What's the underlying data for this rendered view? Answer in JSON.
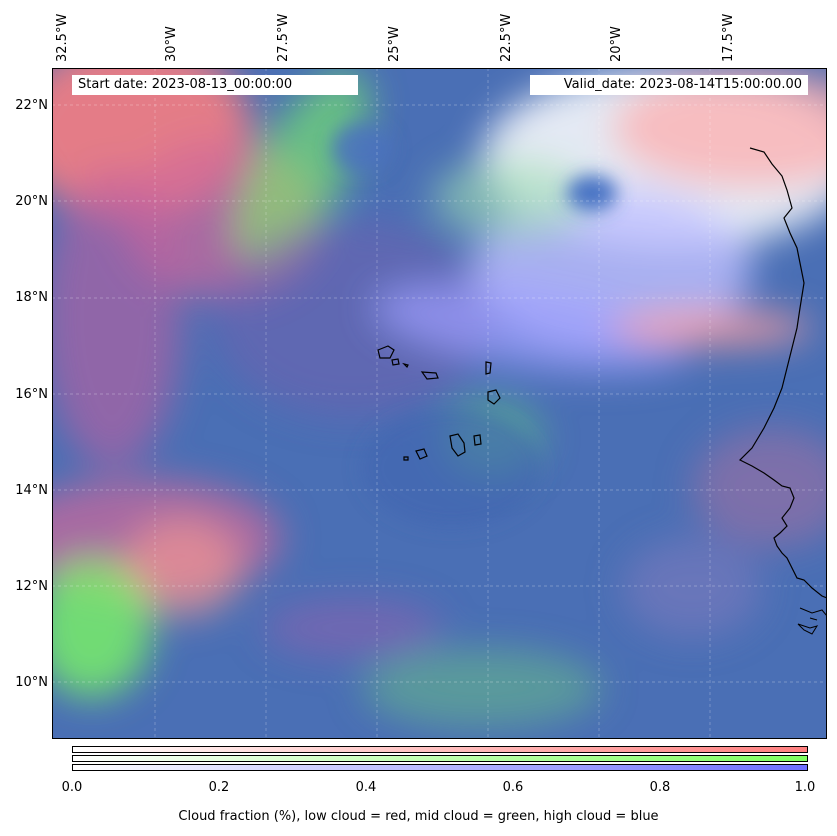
{
  "header": {
    "start_date": "Start date: 2023-08-13_00:00:00",
    "valid_date": "Valid_date: 2023-08-14T15:00:00.00"
  },
  "map": {
    "lon_labels": [
      "32.5°W",
      "30°W",
      "27.5°W",
      "25°W",
      "22.5°W",
      "20°W",
      "17.5°W"
    ],
    "lat_labels": [
      "22°N",
      "20°N",
      "18°N",
      "16°N",
      "14°N",
      "12°N",
      "10°N"
    ],
    "colors": {
      "low_cloud": "#ff7f7f",
      "mid_cloud": "#7fff5f",
      "high_cloud": "#6f6fff",
      "background": "#4a6fb5"
    }
  },
  "colorbar": {
    "ticks": [
      "0.0",
      "0.2",
      "0.4",
      "0.6",
      "0.8",
      "1.0"
    ],
    "label": "Cloud fraction (%), low cloud = red, mid cloud = green, high cloud = blue"
  }
}
